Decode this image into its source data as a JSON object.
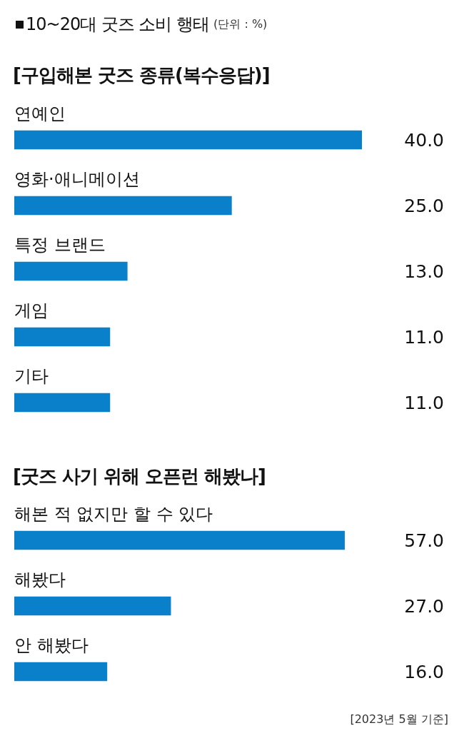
{
  "chart_data": [
    {
      "type": "bar",
      "orientation": "horizontal",
      "title": "10~20대 굿즈 소비 행태",
      "subtitle": "(단위 : %)",
      "annotations": [
        "[구입해본 굿즈 종류(복수응답)]"
      ],
      "categories": [
        "연예인",
        "영화·애니메이션",
        "특정 브랜드",
        "게임",
        "기타"
      ],
      "values": [
        40.0,
        25.0,
        13.0,
        11.0,
        11.0
      ],
      "value_labels": [
        "40.0",
        "25.0",
        "13.0",
        "11.0",
        "11.0"
      ],
      "color": "#0a7fca",
      "legend": false,
      "tick_labels": "y"
    },
    {
      "type": "bar",
      "orientation": "horizontal",
      "title": "[굿즈 사기 위해 오픈런 해봤나]",
      "annotations": [
        "[2023년 5월 기준]"
      ],
      "categories": [
        "해본 적 없지만 할 수 있다",
        "해봤다",
        "안 해봤다"
      ],
      "values": [
        57.0,
        27.0,
        16.0
      ],
      "value_labels": [
        "57.0",
        "27.0",
        "16.0"
      ],
      "color": "#0a7fca",
      "legend": false,
      "tick_labels": "y"
    }
  ]
}
